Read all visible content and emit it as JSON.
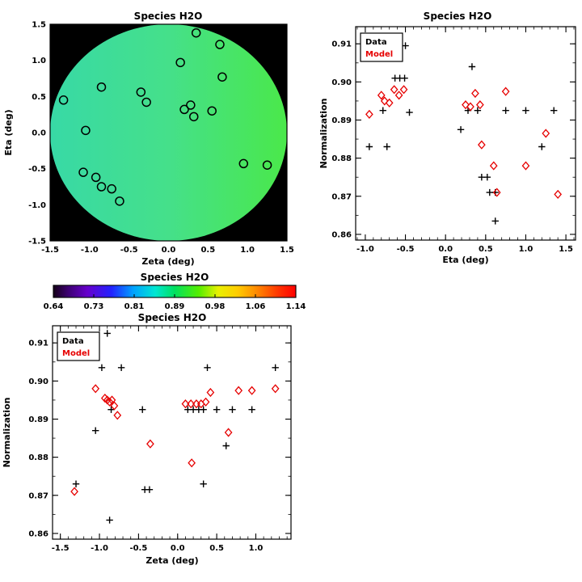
{
  "figure": {
    "background": "#ffffff",
    "data_color": "#000000",
    "model_color": "#e60000"
  },
  "chart_data": [
    {
      "id": "map",
      "type": "scatter",
      "title": "Species H2O",
      "xlabel": "Zeta (deg)",
      "ylabel": "Eta (deg)",
      "xlim": [
        -1.5,
        1.5
      ],
      "ylim": [
        -1.5,
        1.5
      ],
      "xticks": [
        "-1.5",
        "-1.0",
        "-0.5",
        "0.0",
        "0.5",
        "1.0",
        "1.5"
      ],
      "yticks": [
        "-1.5",
        "-1.0",
        "-0.5",
        "0.0",
        "0.5",
        "1.0",
        "1.5"
      ],
      "background_color": "#000000",
      "disk": {
        "center": [
          0,
          0
        ],
        "rx": 1.5,
        "ry": 1.5,
        "gradient": [
          "#38d9a6",
          "#46dff0_ignore",
          "#4ae84a"
        ],
        "gradient_colors": [
          "#38d9a6",
          "#45e08a",
          "#4ae84a"
        ]
      },
      "marker": "open-circle",
      "marker_color": "#000000",
      "points": [
        [
          -1.33,
          0.45
        ],
        [
          -1.05,
          0.03
        ],
        [
          -0.85,
          0.63
        ],
        [
          -1.08,
          -0.55
        ],
        [
          -0.92,
          -0.62
        ],
        [
          -0.85,
          -0.75
        ],
        [
          -0.72,
          -0.78
        ],
        [
          -0.62,
          -0.95
        ],
        [
          -0.35,
          0.56
        ],
        [
          -0.28,
          0.42
        ],
        [
          0.15,
          0.97
        ],
        [
          0.35,
          1.38
        ],
        [
          0.65,
          1.22
        ],
        [
          0.68,
          0.77
        ],
        [
          0.2,
          0.32
        ],
        [
          0.28,
          0.38
        ],
        [
          0.32,
          0.22
        ],
        [
          0.55,
          0.3
        ],
        [
          0.95,
          -0.43
        ],
        [
          1.25,
          -0.45
        ]
      ]
    },
    {
      "id": "eta_scatter",
      "type": "scatter",
      "title": "Species H2O",
      "xlabel": "Eta (deg)",
      "ylabel": "Normalization",
      "xlim": [
        -1.12,
        1.62
      ],
      "ylim": [
        0.8585,
        0.9145
      ],
      "xticks": [
        "-1.0",
        "-0.5",
        "0.0",
        "0.5",
        "1.0",
        "1.5"
      ],
      "yticks": [
        "0.86",
        "0.87",
        "0.88",
        "0.89",
        "0.90",
        "0.91"
      ],
      "grid": false,
      "legend_position": "top-left",
      "legend": [
        {
          "label": "Data",
          "marker": "plus",
          "color": "#000000"
        },
        {
          "label": "Model",
          "marker": "diamond",
          "color": "#e60000"
        }
      ],
      "series": [
        {
          "name": "Data",
          "marker": "plus",
          "color": "#000000",
          "points": [
            [
              -0.95,
              0.883
            ],
            [
              -0.78,
              0.8925
            ],
            [
              -0.73,
              0.883
            ],
            [
              -0.5,
              0.9095
            ],
            [
              -0.63,
              0.901
            ],
            [
              -0.57,
              0.901
            ],
            [
              -0.51,
              0.901
            ],
            [
              -0.45,
              0.892
            ],
            [
              0.19,
              0.8875
            ],
            [
              0.28,
              0.8925
            ],
            [
              0.33,
              0.904
            ],
            [
              0.4,
              0.8925
            ],
            [
              0.45,
              0.875
            ],
            [
              0.52,
              0.875
            ],
            [
              0.55,
              0.871
            ],
            [
              0.62,
              0.871
            ],
            [
              0.62,
              0.8635
            ],
            [
              0.75,
              0.8925
            ],
            [
              1.0,
              0.8925
            ],
            [
              1.2,
              0.883
            ],
            [
              1.35,
              0.8925
            ]
          ]
        },
        {
          "name": "Model",
          "marker": "diamond",
          "color": "#e60000",
          "points": [
            [
              -0.95,
              0.8915
            ],
            [
              -0.8,
              0.8965
            ],
            [
              -0.76,
              0.895
            ],
            [
              -0.7,
              0.8945
            ],
            [
              -0.64,
              0.898
            ],
            [
              -0.58,
              0.8965
            ],
            [
              -0.52,
              0.898
            ],
            [
              0.25,
              0.894
            ],
            [
              0.31,
              0.8935
            ],
            [
              0.37,
              0.897
            ],
            [
              0.43,
              0.894
            ],
            [
              0.45,
              0.8835
            ],
            [
              0.6,
              0.878
            ],
            [
              0.64,
              0.871
            ],
            [
              0.75,
              0.8975
            ],
            [
              1.0,
              0.878
            ],
            [
              1.25,
              0.8865
            ],
            [
              1.4,
              0.8705
            ]
          ]
        }
      ]
    },
    {
      "id": "colorbar",
      "type": "colorbar",
      "title": "Species H2O",
      "tick_labels": [
        "0.64",
        "0.73",
        "0.81",
        "0.89",
        "0.98",
        "1.06",
        "1.14"
      ],
      "range": [
        0.64,
        1.14
      ],
      "gradient": [
        [
          0.0,
          "#150018"
        ],
        [
          0.06,
          "#3c0070"
        ],
        [
          0.14,
          "#6600cc"
        ],
        [
          0.24,
          "#2222ff"
        ],
        [
          0.33,
          "#00a2ff"
        ],
        [
          0.42,
          "#00e6d2"
        ],
        [
          0.5,
          "#00e060"
        ],
        [
          0.6,
          "#55ee00"
        ],
        [
          0.68,
          "#e8f000"
        ],
        [
          0.76,
          "#ffcc00"
        ],
        [
          0.84,
          "#ff8800"
        ],
        [
          0.93,
          "#ff3300"
        ],
        [
          1.0,
          "#ff0000"
        ]
      ]
    },
    {
      "id": "zeta_scatter",
      "type": "scatter",
      "title": "Species H2O",
      "xlabel": "Zeta (deg)",
      "ylabel": "Normalization",
      "xlim": [
        -1.6,
        1.45
      ],
      "ylim": [
        0.8585,
        0.9145
      ],
      "xticks": [
        "-1.5",
        "-1.0",
        "-0.5",
        "0.0",
        "0.5",
        "1.0"
      ],
      "yticks": [
        "0.86",
        "0.87",
        "0.88",
        "0.89",
        "0.90",
        "0.91"
      ],
      "grid": false,
      "legend_position": "top-left",
      "legend": [
        {
          "label": "Data",
          "marker": "plus",
          "color": "#000000"
        },
        {
          "label": "Model",
          "marker": "diamond",
          "color": "#e60000"
        }
      ],
      "series": [
        {
          "name": "Data",
          "marker": "plus",
          "color": "#000000",
          "points": [
            [
              -1.3,
              0.873
            ],
            [
              -1.05,
              0.887
            ],
            [
              -0.97,
              0.9035
            ],
            [
              -0.9,
              0.9125
            ],
            [
              -0.87,
              0.8635
            ],
            [
              -0.85,
              0.8925
            ],
            [
              -0.72,
              0.9035
            ],
            [
              -0.45,
              0.8925
            ],
            [
              -0.42,
              0.8715
            ],
            [
              -0.36,
              0.8715
            ],
            [
              0.13,
              0.8925
            ],
            [
              0.2,
              0.8925
            ],
            [
              0.27,
              0.8925
            ],
            [
              0.33,
              0.8925
            ],
            [
              0.33,
              0.873
            ],
            [
              0.38,
              0.9035
            ],
            [
              0.5,
              0.8925
            ],
            [
              0.62,
              0.883
            ],
            [
              0.7,
              0.8925
            ],
            [
              0.95,
              0.8925
            ],
            [
              1.25,
              0.9035
            ]
          ]
        },
        {
          "name": "Model",
          "marker": "diamond",
          "color": "#e60000",
          "points": [
            [
              -1.32,
              0.871
            ],
            [
              -1.05,
              0.898
            ],
            [
              -0.93,
              0.8955
            ],
            [
              -0.9,
              0.895
            ],
            [
              -0.87,
              0.8945
            ],
            [
              -0.84,
              0.895
            ],
            [
              -0.81,
              0.8935
            ],
            [
              -0.77,
              0.891
            ],
            [
              -0.35,
              0.8835
            ],
            [
              0.1,
              0.894
            ],
            [
              0.17,
              0.894
            ],
            [
              0.18,
              0.8785
            ],
            [
              0.24,
              0.894
            ],
            [
              0.3,
              0.894
            ],
            [
              0.36,
              0.8945
            ],
            [
              0.42,
              0.897
            ],
            [
              0.65,
              0.8865
            ],
            [
              0.78,
              0.8975
            ],
            [
              0.95,
              0.8975
            ],
            [
              1.25,
              0.898
            ]
          ]
        }
      ]
    }
  ]
}
